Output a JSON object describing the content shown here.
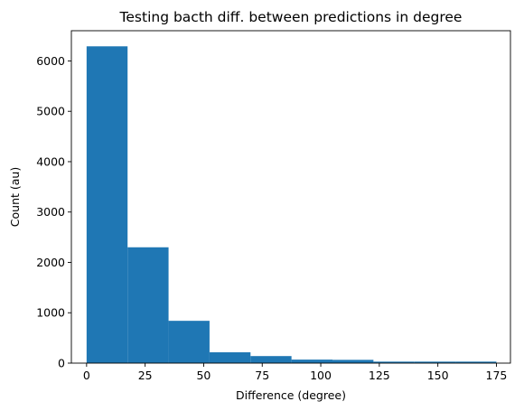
{
  "chart_data": {
    "type": "bar",
    "subtype": "histogram",
    "title": "Testing bacth diff. between predictions in degree",
    "xlabel": "Difference (degree)",
    "ylabel": "Count (au)",
    "xlim": [
      -6.5,
      181
    ],
    "ylim": [
      0,
      6600
    ],
    "xticks": [
      0,
      25,
      50,
      75,
      100,
      125,
      150,
      175
    ],
    "yticks": [
      0,
      1000,
      2000,
      3000,
      4000,
      5000,
      6000
    ],
    "bin_edges": [
      0,
      17.5,
      35,
      52.5,
      70,
      87.5,
      105,
      122.5,
      140,
      157.5,
      175
    ],
    "values": [
      6290,
      2300,
      840,
      215,
      140,
      70,
      65,
      30,
      30,
      30
    ],
    "color": "#1f77b4",
    "grid": false,
    "legend": false
  }
}
